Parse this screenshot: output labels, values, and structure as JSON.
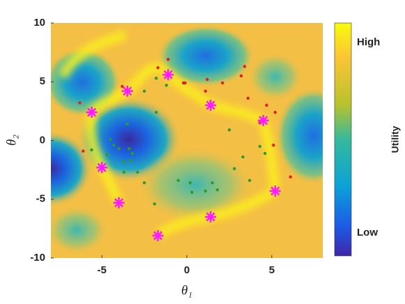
{
  "chart_data": {
    "type": "scatter",
    "xlabel": "θ₁",
    "ylabel": "θ₂",
    "xlim": [
      -8,
      8
    ],
    "ylim": [
      -10,
      10
    ],
    "xticks": [
      -5,
      0,
      5
    ],
    "yticks": [
      -10,
      -5,
      0,
      5,
      10
    ],
    "colorbar": {
      "label": "Utility",
      "ticklabels": [
        "High",
        "Low"
      ]
    },
    "series": [
      {
        "color": "#2e9a2e",
        "marker": "dot",
        "x": [
          -1.8,
          -1.2,
          -2.5,
          -1.8,
          -3.5,
          -4.5,
          -5.6,
          -4.3,
          -4.0,
          -3.4,
          -3.2,
          -4.7,
          -3.7,
          -3.3,
          -3.7,
          -2.9,
          -2.5,
          -1.9,
          -0.5,
          0.2,
          0.3,
          1.1,
          1.5,
          1.8,
          2.5,
          2.8,
          3.3,
          3.7,
          4.3,
          4.6
        ],
        "y": [
          5.3,
          4.7,
          4.2,
          2.4,
          1.4,
          0.1,
          -0.8,
          -0.4,
          -0.7,
          -0.7,
          -1.1,
          -1.2,
          -1.8,
          -1.7,
          -2.7,
          -2.7,
          -3.6,
          -5.4,
          -3.4,
          -3.6,
          -4.4,
          -4.3,
          -3.6,
          -4.2,
          0.9,
          -2.4,
          -1.4,
          -3.4,
          -0.5,
          -1.1
        ]
      },
      {
        "color": "#e0201c",
        "marker": "dot",
        "x": [
          -6.3,
          -1.1,
          -1.7,
          -3.8,
          -0.2,
          -0.1,
          1.2,
          1.1,
          2.1,
          3.2,
          3.4,
          3.6,
          4.7,
          5.2,
          4.3,
          5.1,
          6.1,
          -6.1
        ],
        "y": [
          3.2,
          6.9,
          6.2,
          4.6,
          4.9,
          4.9,
          5.2,
          4.2,
          4.9,
          5.5,
          6.3,
          3.6,
          3.0,
          2.4,
          1.5,
          -0.4,
          -3.1,
          -0.9
        ]
      },
      {
        "color": "#ff1aff",
        "marker": "asterisk",
        "x": [
          -1.1,
          -3.5,
          -5.6,
          1.4,
          4.5,
          -5.0,
          5.2,
          -4.0,
          1.4,
          -1.7
        ],
        "y": [
          5.6,
          4.2,
          2.4,
          3.0,
          1.7,
          -2.3,
          -4.3,
          -5.3,
          -6.5,
          -8.1
        ]
      }
    ]
  }
}
